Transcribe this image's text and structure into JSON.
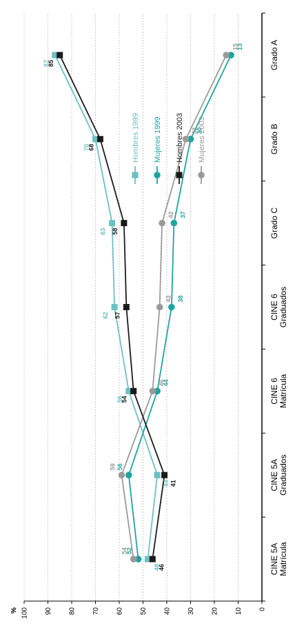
{
  "chart_data": {
    "type": "line",
    "ylabel": "%",
    "ylim": [
      0,
      100
    ],
    "yticks": [
      "0",
      "10",
      "20",
      "30",
      "40",
      "50",
      "60",
      "70",
      "80",
      "90",
      "100"
    ],
    "categories": [
      [
        "CINE 5A",
        "Matrícula"
      ],
      [
        "CINE 5A",
        "Graduados"
      ],
      [
        "CINE 6",
        "Matrícula"
      ],
      [
        "CINE 6",
        "Graduados"
      ],
      [
        "Grado C"
      ],
      [
        "Grado B"
      ],
      [
        "Grado A"
      ]
    ],
    "legend_position": "top-right",
    "grid": true,
    "series": [
      {
        "name": "Mujeres  2003",
        "values": [
          54,
          59,
          46,
          43,
          42,
          32,
          15
        ],
        "labels": [
          "54",
          "59",
          "46",
          "43",
          "42",
          "32",
          "15"
        ],
        "color": "#9a9a9a",
        "marker": "circle"
      },
      {
        "name": "Hombres  2003",
        "values": [
          46,
          41,
          54,
          57,
          58,
          68,
          85
        ],
        "labels": [
          "46",
          "41",
          "54",
          "57",
          "58",
          "68",
          "85"
        ],
        "color": "#1a1a1a",
        "marker": "square"
      },
      {
        "name": "Mujeres 1999",
        "values": [
          52,
          56,
          44,
          38,
          37,
          30,
          13
        ],
        "labels": [
          "52",
          "56",
          "44",
          "38",
          "37",
          "30",
          "13"
        ],
        "color": "#1fa3a0",
        "marker": "circle"
      },
      {
        "name": "Hombres 1999",
        "values": [
          48,
          44,
          56,
          62,
          63,
          70,
          87
        ],
        "labels": [
          "48",
          "44",
          "56",
          "62",
          "63",
          "70",
          "87"
        ],
        "color": "#6cc0c2",
        "marker": "square"
      }
    ]
  }
}
